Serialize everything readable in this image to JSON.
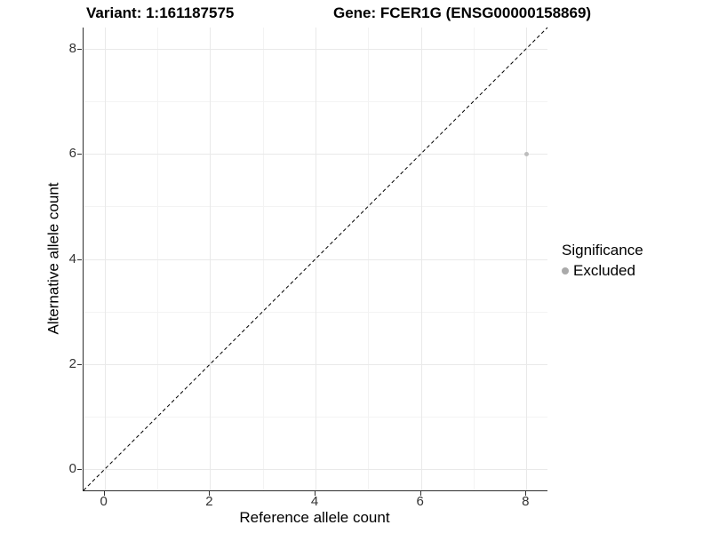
{
  "chart_data": {
    "type": "scatter",
    "title_left": "Variant: 1:161187575",
    "title_right": "Gene: FCER1G (ENSG00000158869)",
    "xlabel": "Reference allele count",
    "ylabel": "Alternative allele count",
    "xlim": [
      -0.4,
      8.4
    ],
    "ylim": [
      -0.4,
      8.4
    ],
    "x_major_ticks": [
      0,
      2,
      4,
      6,
      8
    ],
    "x_minor_ticks": [
      1,
      3,
      5,
      7
    ],
    "y_major_ticks": [
      0,
      2,
      4,
      6,
      8
    ],
    "y_minor_ticks": [
      1,
      3,
      5,
      7
    ],
    "grid": "major and minor gridlines, white background",
    "identity_line": {
      "equation": "y = x",
      "style": "dashed",
      "color": "#000000"
    },
    "series": [
      {
        "name": "Excluded",
        "color": "#bdbdbd",
        "points": [
          {
            "x": 8,
            "y": 6
          }
        ]
      }
    ],
    "legend": {
      "title": "Significance",
      "position": "right",
      "entries": [
        {
          "label": "Excluded",
          "color": "#aaaaaa"
        }
      ]
    }
  },
  "style": {
    "background": "#ffffff",
    "grid_major": "#e9e9e9",
    "grid_minor": "#f3f3f3",
    "axis_line": "#2f2f2f",
    "tick_text": "#333333"
  }
}
